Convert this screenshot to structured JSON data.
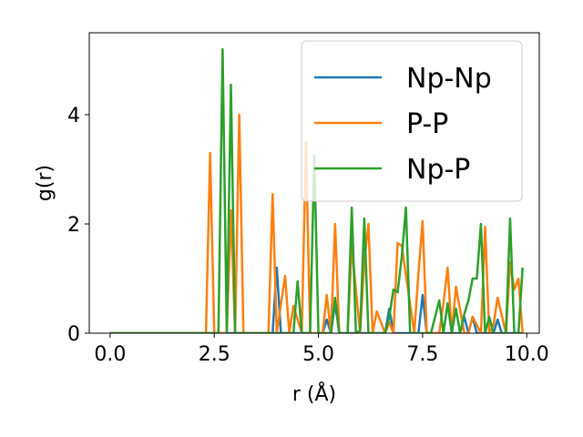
{
  "chart_data": {
    "type": "line",
    "xlabel": "r (Å)",
    "ylabel": "g(r)",
    "xlim": [
      -0.5,
      10.3
    ],
    "ylim": [
      0,
      5.5
    ],
    "xticks": [
      "0.0",
      "2.5",
      "5.0",
      "7.5",
      "10.0"
    ],
    "yticks": [
      "0",
      "2",
      "4"
    ],
    "grid": false,
    "legend_position": "top-right",
    "series": [
      {
        "name": "Np-Np",
        "color": "#1f77b4",
        "x": [
          0.0,
          3.9,
          4.0,
          4.1,
          5.1,
          5.2,
          5.3,
          5.4,
          5.5,
          6.6,
          6.7,
          6.8,
          7.4,
          7.5,
          7.6,
          8.4,
          8.5,
          8.6,
          8.7,
          8.8,
          9.2,
          9.3,
          9.4,
          9.9
        ],
        "y": [
          0,
          0,
          1.2,
          0,
          0,
          0.25,
          0,
          0.55,
          0,
          0,
          0.45,
          0,
          0,
          0.7,
          0,
          0,
          0.3,
          0,
          0.3,
          0,
          0,
          0.25,
          0,
          0
        ]
      },
      {
        "name": "P-P",
        "color": "#ff7f0e",
        "x": [
          0.0,
          2.3,
          2.4,
          2.5,
          2.6,
          2.7,
          2.8,
          2.9,
          3.0,
          3.1,
          3.2,
          3.8,
          3.9,
          4.0,
          4.2,
          4.3,
          4.4,
          4.6,
          4.7,
          4.8,
          5.1,
          5.2,
          5.3,
          5.4,
          5.5,
          5.7,
          5.8,
          6.0,
          6.1,
          6.2,
          6.3,
          6.4,
          6.6,
          6.7,
          6.8,
          6.9,
          7.0,
          7.3,
          7.4,
          7.5,
          7.6,
          7.9,
          8.0,
          8.1,
          8.2,
          8.3,
          8.5,
          8.6,
          8.7,
          8.9,
          9.0,
          9.1,
          9.2,
          9.3,
          9.5,
          9.6,
          9.7,
          9.8,
          9.9
        ],
        "y": [
          0,
          0,
          3.3,
          0,
          0,
          0,
          0,
          2.25,
          0,
          4.0,
          0,
          0,
          2.55,
          0,
          1.05,
          0,
          0.5,
          0,
          3.5,
          0,
          0,
          0.7,
          0,
          2.0,
          0,
          0,
          1.6,
          0,
          1.3,
          2.0,
          0,
          0.4,
          0,
          0.2,
          0,
          1.65,
          1.6,
          0,
          1.1,
          2.05,
          0,
          0,
          0.55,
          1.2,
          0,
          0.85,
          0,
          0,
          0.3,
          0,
          1.95,
          0,
          0.15,
          0.65,
          0,
          1.3,
          0.8,
          1.0,
          0
        ]
      },
      {
        "name": "Np-P",
        "color": "#2ca02c",
        "x": [
          0.0,
          2.6,
          2.7,
          2.8,
          2.9,
          3.0,
          4.4,
          4.5,
          4.6,
          4.8,
          4.9,
          5.0,
          5.3,
          5.4,
          5.5,
          5.7,
          5.8,
          5.9,
          6.0,
          6.1,
          6.2,
          6.6,
          6.7,
          6.8,
          6.9,
          7.0,
          7.1,
          7.2,
          7.7,
          7.8,
          7.9,
          8.0,
          8.1,
          8.2,
          8.3,
          8.4,
          8.5,
          8.6,
          8.7,
          8.8,
          8.9,
          9.0,
          9.1,
          9.2,
          9.5,
          9.6,
          9.7,
          9.8,
          9.9
        ],
        "y": [
          0,
          0,
          5.2,
          0,
          4.55,
          0,
          0,
          0.95,
          0,
          0,
          3.25,
          0,
          0,
          0.65,
          0,
          0,
          2.3,
          0,
          0.05,
          2.1,
          0,
          0,
          0.3,
          0.8,
          0.75,
          1.4,
          2.3,
          0,
          0,
          0.3,
          0.6,
          0,
          0.55,
          0,
          0.45,
          0,
          0.35,
          0.6,
          1.0,
          1.0,
          2.0,
          0,
          0.3,
          0,
          0,
          2.1,
          0,
          0,
          1.2
        ]
      }
    ]
  }
}
